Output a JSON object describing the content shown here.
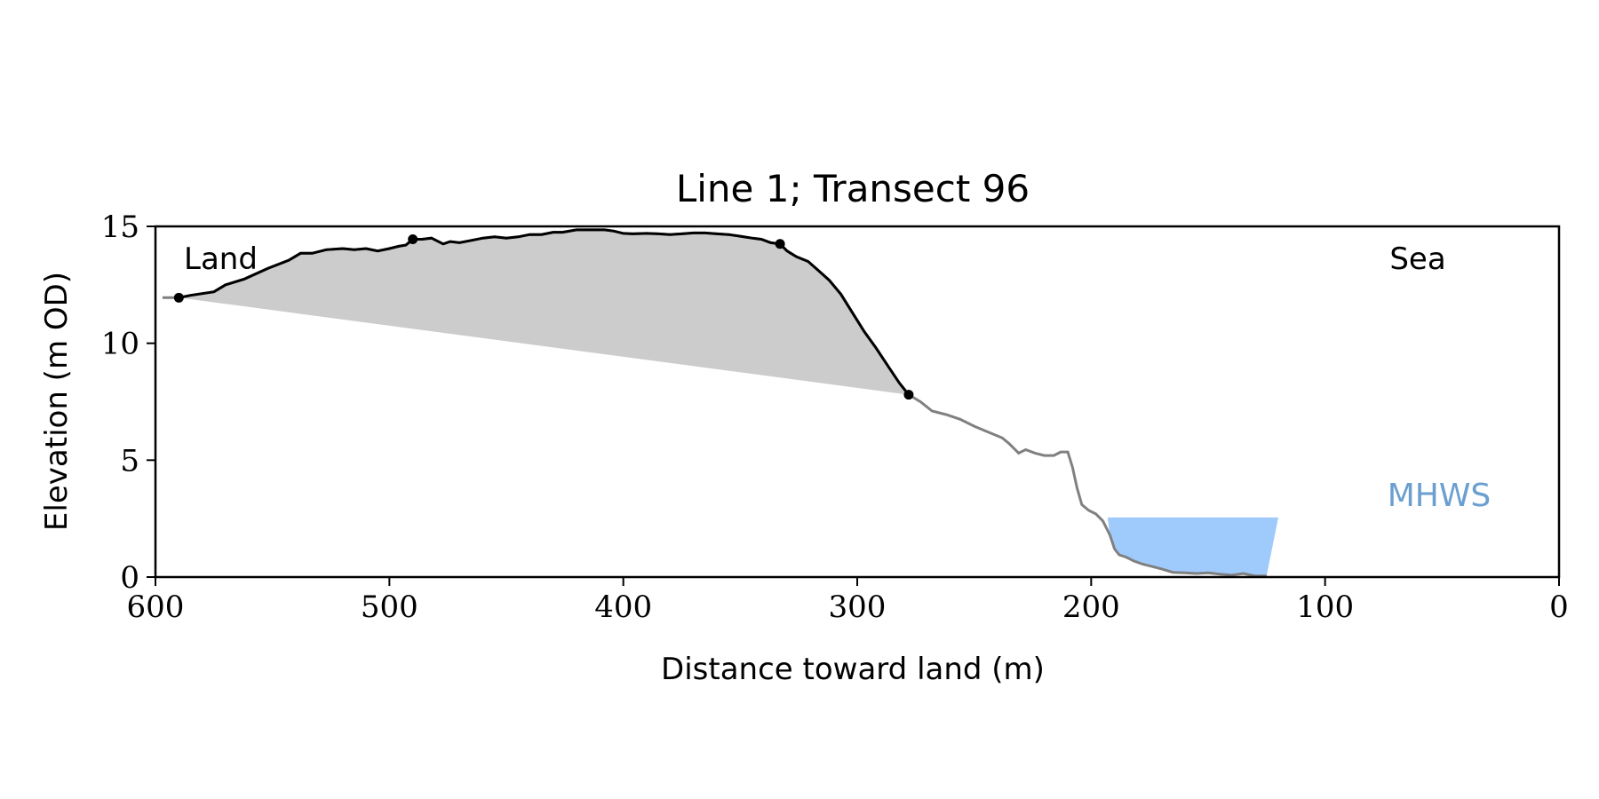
{
  "chart_data": {
    "type": "area",
    "title": "Line 1; Transect 96",
    "xlabel": "Distance toward land (m)",
    "ylabel": "Elevation (m OD)",
    "xlim": [
      600,
      0
    ],
    "ylim": [
      0,
      15
    ],
    "xticks": [
      600,
      500,
      400,
      300,
      200,
      100,
      0
    ],
    "yticks": [
      0,
      5,
      10,
      15
    ],
    "grid": false,
    "annotations": {
      "land": "Land",
      "sea": "Sea",
      "mhws": "MHWS"
    },
    "mhws_level": 2.55,
    "mhws_extent": [
      193,
      120
    ],
    "colors": {
      "fill": "#cccccc",
      "profile_main": "#000000",
      "profile_outer": "#808080",
      "mhws": "#9fcbfc",
      "mhws_text": "#6a9fd0"
    },
    "profile": {
      "x": [
        597,
        590,
        585,
        575,
        570,
        562,
        552,
        543,
        538,
        533,
        527,
        520,
        515,
        510,
        505,
        500,
        496,
        493,
        490,
        486,
        482,
        477,
        474,
        470,
        465,
        460,
        455,
        450,
        445,
        440,
        435,
        430,
        426,
        420,
        416,
        412,
        408,
        404,
        400,
        396,
        390,
        385,
        380,
        375,
        370,
        365,
        360,
        355,
        350,
        345,
        341,
        337,
        333,
        330,
        326,
        321,
        317,
        312,
        307,
        302,
        297,
        292,
        287,
        282,
        278,
        273,
        268,
        262,
        256,
        250,
        244,
        238,
        235,
        231,
        228,
        224,
        220,
        216,
        213,
        210,
        208,
        206,
        204,
        201,
        198,
        195,
        192,
        190,
        188,
        185,
        182,
        178,
        174,
        170,
        165,
        160,
        155,
        150,
        145,
        140,
        135,
        130,
        125
      ],
      "y": [
        11.95,
        11.95,
        12.05,
        12.2,
        12.5,
        12.75,
        13.2,
        13.55,
        13.85,
        13.85,
        14.0,
        14.05,
        14.0,
        14.05,
        13.95,
        14.05,
        14.15,
        14.2,
        14.45,
        14.45,
        14.5,
        14.25,
        14.35,
        14.3,
        14.4,
        14.5,
        14.55,
        14.5,
        14.55,
        14.65,
        14.65,
        14.75,
        14.75,
        14.85,
        14.85,
        14.85,
        14.85,
        14.8,
        14.7,
        14.68,
        14.7,
        14.68,
        14.65,
        14.68,
        14.72,
        14.72,
        14.68,
        14.65,
        14.58,
        14.5,
        14.45,
        14.3,
        14.25,
        13.95,
        13.7,
        13.5,
        13.15,
        12.7,
        12.1,
        11.3,
        10.5,
        9.8,
        9.05,
        8.3,
        7.8,
        7.5,
        7.1,
        6.95,
        6.75,
        6.45,
        6.2,
        5.95,
        5.7,
        5.3,
        5.45,
        5.3,
        5.2,
        5.2,
        5.35,
        5.35,
        4.7,
        3.8,
        3.1,
        2.85,
        2.7,
        2.4,
        1.8,
        1.2,
        0.95,
        0.85,
        0.7,
        0.55,
        0.45,
        0.35,
        0.2,
        0.18,
        0.15,
        0.18,
        0.12,
        0.08,
        0.15,
        0.05,
        0.05
      ]
    },
    "cliff_points": {
      "x": [
        590,
        490,
        333,
        278
      ],
      "y": [
        11.95,
        14.45,
        14.25,
        7.8
      ]
    },
    "toe_baseline": {
      "x": [
        590,
        278
      ],
      "y": [
        11.95,
        7.8
      ]
    }
  }
}
